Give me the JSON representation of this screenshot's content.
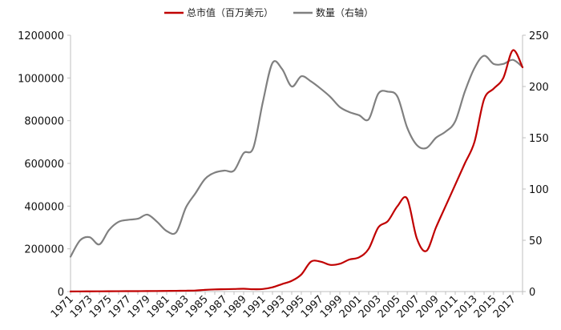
{
  "chart_data": {
    "type": "line",
    "title": "",
    "xlabel": "",
    "ylabel": "",
    "x": [
      1971,
      1972,
      1973,
      1974,
      1975,
      1976,
      1977,
      1978,
      1979,
      1980,
      1981,
      1982,
      1983,
      1984,
      1985,
      1986,
      1987,
      1988,
      1989,
      1990,
      1991,
      1992,
      1993,
      1994,
      1995,
      1996,
      1997,
      1998,
      1999,
      2000,
      2001,
      2002,
      2003,
      2004,
      2005,
      2006,
      2007,
      2008,
      2009,
      2010,
      2011,
      2012,
      2013,
      2014,
      2015,
      2016,
      2017,
      2018
    ],
    "x_tick_labels": [
      "1971",
      "1973",
      "1975",
      "1977",
      "1979",
      "1981",
      "1983",
      "1985",
      "1987",
      "1989",
      "1991",
      "1993",
      "1995",
      "1997",
      "1999",
      "2001",
      "2003",
      "2005",
      "2007",
      "2009",
      "2011",
      "2013",
      "2015",
      "2017"
    ],
    "y_left": {
      "ylim": [
        0,
        1200000
      ],
      "ticks": [
        0,
        200000,
        400000,
        600000,
        800000,
        1000000,
        1200000
      ],
      "tick_labels": [
        "0",
        "200000",
        "400000",
        "600000",
        "800000",
        "1000000",
        "1200000"
      ]
    },
    "y_right": {
      "ylim": [
        0,
        250
      ],
      "ticks": [
        0,
        50,
        100,
        150,
        200,
        250
      ],
      "tick_labels": [
        "0",
        "50",
        "100",
        "150",
        "200",
        "250"
      ]
    },
    "legend": {
      "position": "top-center"
    },
    "series": [
      {
        "name": "总市值（百万美元）",
        "axis": "left",
        "color": "#c00000",
        "values": [
          500,
          800,
          1000,
          1200,
          1400,
          1600,
          1800,
          2000,
          2200,
          2500,
          3000,
          3500,
          4000,
          5000,
          8000,
          10000,
          11000,
          12000,
          13000,
          11000,
          12000,
          20000,
          35000,
          50000,
          80000,
          140000,
          140000,
          125000,
          130000,
          150000,
          160000,
          200000,
          300000,
          330000,
          400000,
          435000,
          250000,
          190000,
          300000,
          400000,
          500000,
          600000,
          700000,
          900000,
          950000,
          1000000,
          1130000,
          1050000
        ]
      },
      {
        "name": "数量（右轴）",
        "axis": "right",
        "color": "#808080",
        "values": [
          34,
          50,
          53,
          46,
          60,
          68,
          70,
          71,
          75,
          68,
          59,
          58,
          82,
          96,
          110,
          116,
          118,
          118,
          135,
          140,
          185,
          223,
          217,
          200,
          210,
          205,
          198,
          190,
          180,
          175,
          172,
          168,
          193,
          195,
          190,
          160,
          143,
          140,
          150,
          156,
          166,
          195,
          218,
          230,
          222,
          222,
          226,
          219
        ]
      }
    ]
  }
}
